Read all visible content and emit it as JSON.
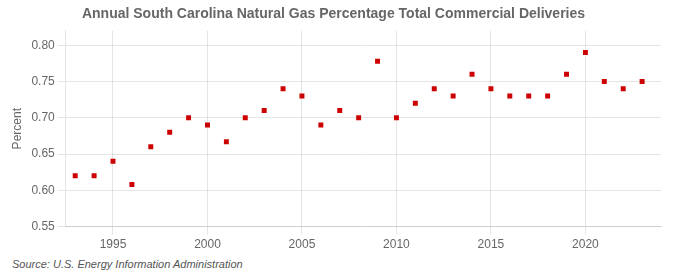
{
  "chart_data": {
    "type": "scatter",
    "title": "Annual South Carolina Natural Gas Percentage Total Commercial Deliveries",
    "ylabel": "Percent",
    "source": "Source: U.S. Energy Information Administration",
    "x": [
      1993,
      1994,
      1995,
      1996,
      1997,
      1998,
      1999,
      2000,
      2001,
      2002,
      2003,
      2004,
      2005,
      2006,
      2007,
      2008,
      2009,
      2010,
      2011,
      2012,
      2013,
      2014,
      2015,
      2016,
      2017,
      2018,
      2019,
      2020,
      2021,
      2022,
      2023
    ],
    "values": [
      0.62,
      0.62,
      0.64,
      0.608,
      0.66,
      0.68,
      0.7,
      0.69,
      0.667,
      0.7,
      0.71,
      0.74,
      0.73,
      0.69,
      0.71,
      0.7,
      0.778,
      0.7,
      0.72,
      0.74,
      0.73,
      0.76,
      0.74,
      0.73,
      0.73,
      0.73,
      0.76,
      0.79,
      0.75,
      0.74,
      0.75
    ],
    "color": "#cc0000",
    "marker": "square",
    "xlim": [
      1992.5,
      2024
    ],
    "xticks": [
      1995,
      2000,
      2005,
      2010,
      2015,
      2020
    ],
    "ylim": [
      0.55,
      0.82
    ],
    "yticks": [
      0.55,
      {
        "value": 0.6,
        "label": "0.60"
      },
      0.65,
      {
        "value": 0.7,
        "label": "0.70"
      },
      0.75,
      {
        "value": 0.8,
        "label": "0.80"
      }
    ],
    "grid": true
  }
}
